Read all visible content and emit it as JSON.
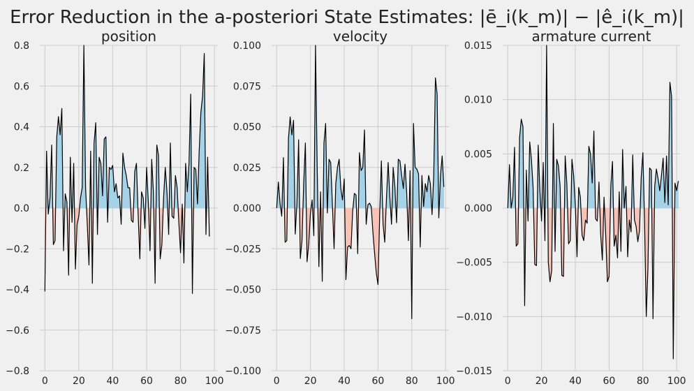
{
  "figure": {
    "title": "Error Reduction in the a-posteriori State Estimates: |ē_i(k_m)| − |ê_i(k_m)|",
    "colors": {
      "background": "#f0f0f0",
      "grid": "#cbcbcb",
      "line": "#000000",
      "positive_fill": "#a6d2e8",
      "negative_fill": "#f7c2b7"
    }
  },
  "chart_data": [
    {
      "type": "area",
      "title": "position",
      "xlabel": "",
      "ylabel": "",
      "grid": true,
      "xlim": [
        -3,
        102
      ],
      "ylim": [
        -0.8,
        0.8
      ],
      "xticks": [
        0,
        20,
        40,
        60,
        80,
        100
      ],
      "yticks": [
        -0.8,
        -0.6,
        -0.4,
        -0.2,
        0.0,
        0.2,
        0.4,
        0.6,
        0.8
      ],
      "xtick_labels": [
        "0",
        "20",
        "40",
        "60",
        "80",
        "100"
      ],
      "ytick_labels": [
        "−0.8",
        "−0.6",
        "−0.4",
        "−0.2",
        "0.0",
        "0.2",
        "0.4",
        "0.6",
        "0.8"
      ],
      "x_start": 0,
      "x_step": 1,
      "values": [
        -0.41,
        0.28,
        -0.03,
        0.05,
        0.31,
        -0.18,
        -0.16,
        0.35,
        0.45,
        0.36,
        0.49,
        -0.21,
        0.07,
        0.03,
        -0.33,
        0.25,
        -0.07,
        0.22,
        -0.3,
        -0.08,
        -0.04,
        0.05,
        0.1,
        0.8,
        0.1,
        -0.08,
        -0.28,
        0.28,
        -0.37,
        0.32,
        0.42,
        -0.13,
        0.25,
        0.22,
        0.06,
        0.34,
        0.35,
        -0.07,
        0.2,
        0.19,
        0.21,
        0.08,
        0.12,
        0.05,
        0.06,
        -0.08,
        0.27,
        0.2,
        0.16,
        0.1,
        0.1,
        -0.06,
        -0.07,
        0.18,
        0.22,
        -0.03,
        -0.25,
        0.08,
        0.05,
        -0.1,
        0.2,
        0.03,
        -0.21,
        0.24,
        0.08,
        -0.37,
        0.31,
        0.26,
        -0.25,
        -0.18,
        0.05,
        0.2,
        0.08,
        -0.13,
        0.32,
        -0.04,
        -0.05,
        0.16,
        0.1,
        -0.07,
        -0.22,
        0.02,
        -0.27,
        0.22,
        0.08,
        0.22,
        0.56,
        -0.42,
        0.2,
        0.19,
        0.02,
        0.28,
        0.47,
        0.55,
        0.76,
        -0.13,
        0.25,
        -0.14
      ]
    },
    {
      "type": "area",
      "title": "velocity",
      "xlabel": "",
      "ylabel": "",
      "grid": true,
      "xlim": [
        -3,
        102
      ],
      "ylim": [
        -0.1,
        0.1
      ],
      "xticks": [
        0,
        20,
        40,
        60,
        80,
        100
      ],
      "yticks": [
        -0.1,
        -0.075,
        -0.05,
        -0.025,
        0.0,
        0.025,
        0.05,
        0.075,
        0.1
      ],
      "xtick_labels": [
        "0",
        "20",
        "40",
        "60",
        "80",
        "100"
      ],
      "ytick_labels": [
        "−0.100",
        "−0.075",
        "−0.050",
        "−0.025",
        "0.000",
        "0.025",
        "0.050",
        "0.075",
        "0.100"
      ],
      "x_start": 0,
      "x_step": 1,
      "values": [
        0.0,
        0.016,
        0.003,
        -0.005,
        0.031,
        -0.021,
        -0.02,
        0.043,
        0.056,
        0.045,
        0.054,
        -0.016,
        0.003,
        0.042,
        -0.031,
        -0.02,
        0.015,
        0.04,
        -0.033,
        -0.022,
        -0.003,
        0.005,
        -0.017,
        0.1,
        0.025,
        -0.036,
        0.01,
        -0.045,
        0.04,
        0.052,
        -0.003,
        0.03,
        0.028,
        0.002,
        -0.025,
        0.015,
        0.025,
        0.03,
        0.012,
        0.005,
        0.018,
        -0.044,
        -0.024,
        -0.023,
        -0.025,
        -0.002,
        0.009,
        0.008,
        -0.028,
        0.034,
        0.023,
        0.025,
        0.048,
        -0.01,
        0.002,
        0.003,
        0.001,
        -0.015,
        -0.028,
        -0.04,
        -0.047,
        -0.004,
        0.029,
        -0.01,
        -0.021,
        0.006,
        0.028,
        0.007,
        -0.01,
        0.025,
        0.013,
        -0.009,
        0.03,
        0.029,
        0.02,
        0.012,
        0.027,
        0.009,
        -0.02,
        0.023,
        -0.068,
        0.052,
        0.025,
        0.024,
        0.021,
        -0.024,
        0.02,
        0.001,
        0.015,
        0.01,
        0.02,
        0.015,
        -0.004,
        0.02,
        0.08,
        0.07,
        -0.006,
        0.02,
        0.032,
        0.013
      ]
    },
    {
      "type": "area",
      "title": "armature current",
      "xlabel": "",
      "ylabel": "",
      "grid": true,
      "xlim": [
        -3,
        102
      ],
      "ylim": [
        -0.015,
        0.015
      ],
      "xticks": [
        0,
        20,
        40,
        60,
        80,
        100
      ],
      "yticks": [
        -0.015,
        -0.01,
        -0.005,
        0.0,
        0.005,
        0.01,
        0.015
      ],
      "xtick_labels": [
        "0",
        "20",
        "40",
        "60",
        "80",
        "100"
      ],
      "ytick_labels": [
        "−0.015",
        "−0.010",
        "−0.005",
        "0.000",
        "0.005",
        "0.010",
        "0.015"
      ],
      "x_start": 0,
      "x_step": 1,
      "values": [
        0.0,
        0.004,
        0.0,
        0.001,
        0.0056,
        -0.0035,
        -0.0033,
        0.0065,
        0.0082,
        0.0075,
        -0.009,
        0.0035,
        -0.0012,
        0.0061,
        0.0045,
        0.0019,
        -0.0052,
        -0.0053,
        0.0058,
        0.0017,
        -0.0012,
        0.0042,
        -0.003,
        0.015,
        -0.005,
        -0.0068,
        -0.0058,
        0.0078,
        -0.004,
        0.0045,
        0.0039,
        0.002,
        -0.0062,
        -0.0063,
        0.0048,
        0.0022,
        -0.0033,
        -0.003,
        0.0045,
        0.003,
        0.0003,
        -0.0045,
        0.0019,
        0.001,
        -0.0025,
        -0.003,
        -0.0011,
        -0.0014,
        0.0057,
        0.005,
        0.0023,
        0.0071,
        -0.001,
        -0.0012,
        0.0024,
        -0.0024,
        -0.0048,
        0.001,
        -0.0025,
        -0.0068,
        -0.0063,
        0.002,
        0.0043,
        -0.0035,
        -0.0025,
        -0.0046,
        0.0015,
        -0.004,
        0.0054,
        0.0,
        0.002,
        -0.0045,
        -0.0011,
        -0.0022,
        0.0049,
        -0.0011,
        -0.0017,
        -0.0031,
        -0.0021,
        0.0028,
        0.0051,
        -0.0013,
        -0.01,
        -0.0055,
        0.0037,
        0.0035,
        -0.0102,
        0.002,
        0.0036,
        0.0027,
        0.0016,
        0.003,
        0.0046,
        0.0005,
        0.0048,
        0.0003,
        0.0116,
        0.0103,
        -0.0139,
        0.0023,
        0.0016,
        0.0025
      ]
    }
  ]
}
